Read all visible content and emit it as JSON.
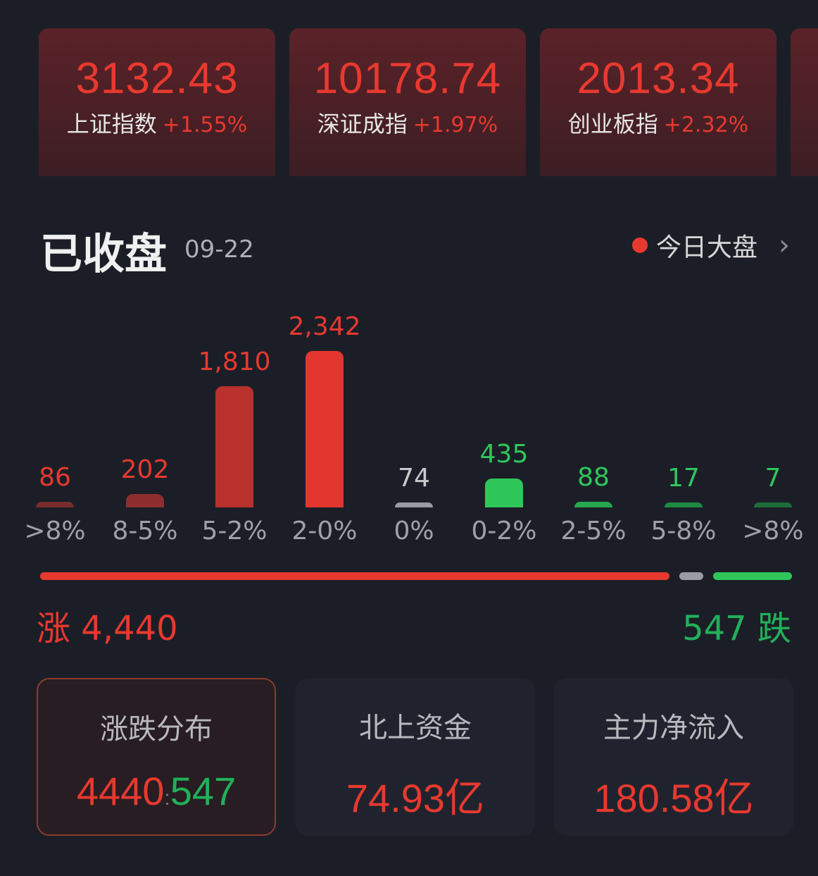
{
  "indices": [
    {
      "value": "3132.43",
      "name": "上证指数",
      "change": "+1.55%"
    },
    {
      "value": "10178.74",
      "name": "深证成指",
      "change": "+1.97%"
    },
    {
      "value": "2013.34",
      "name": "创业板指",
      "change": "+2.32%"
    }
  ],
  "header": {
    "title": "已收盘",
    "date": "09-22",
    "link": "今日大盘"
  },
  "chart_data": {
    "type": "bar",
    "categories": [
      ">8%",
      "8-5%",
      "5-2%",
      "2-0%",
      "0%",
      "0-2%",
      "2-5%",
      "5-8%",
      ">8%"
    ],
    "values": [
      86,
      202,
      1810,
      2342,
      74,
      435,
      88,
      17,
      7
    ],
    "labels": [
      "86",
      "202",
      "1,810",
      "2,342",
      "74",
      "435",
      "88",
      "17",
      "7"
    ],
    "colors": [
      "#7a2b2c",
      "#8f2e2e",
      "#b9302d",
      "#e3362f",
      "#9a9ca3",
      "#2fc75a",
      "#27a84e",
      "#1f8a43",
      "#1b6d39"
    ]
  },
  "summary": {
    "rise_label": "涨",
    "rise_count": "4,440",
    "fall_label": "跌",
    "fall_count": "547",
    "rise": 4440,
    "flat": 74,
    "fall": 547
  },
  "cards": [
    {
      "title": "涨跌分布",
      "rise": "4440",
      "sep": ":",
      "fall": "547"
    },
    {
      "title": "北上资金",
      "value": "74.93亿"
    },
    {
      "title": "主力净流入",
      "value": "180.58亿"
    }
  ],
  "colors": {
    "up": "#e8392f",
    "down": "#22b05a",
    "flat": "#9a9ca3",
    "bg": "#1b1e27"
  }
}
